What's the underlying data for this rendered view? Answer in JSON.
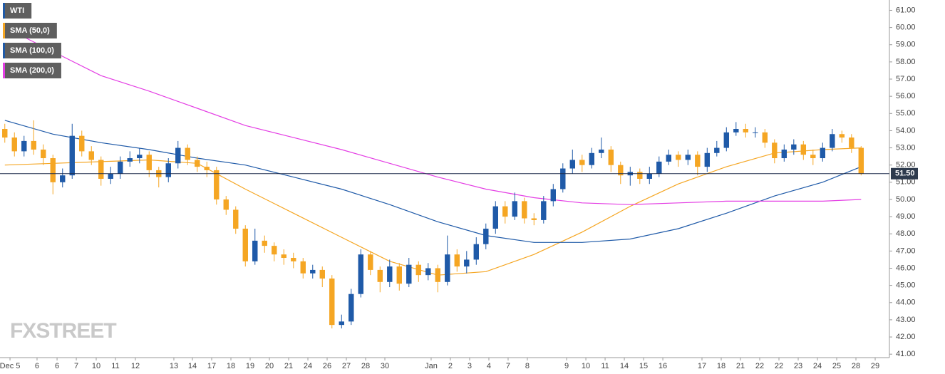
{
  "chart_data": {
    "type": "candlestick",
    "name": "WTI",
    "up_color": "#1f5aa8",
    "down_color": "#f5a623",
    "watermark": "FXSTREET",
    "last_price": {
      "value": 51.5,
      "label": "51.50"
    },
    "x": [
      0,
      1,
      2,
      3,
      4,
      5,
      6,
      7,
      8,
      9,
      10,
      11,
      12,
      13,
      14,
      15,
      16,
      17,
      18,
      19,
      20,
      21,
      22,
      23,
      24,
      25,
      26,
      27,
      28,
      29,
      30,
      31,
      32,
      33,
      34,
      35,
      36,
      37,
      38,
      39,
      40,
      41,
      42,
      43,
      44,
      45,
      46,
      47,
      48,
      49,
      50,
      51,
      52,
      53,
      54,
      55,
      56,
      57,
      58,
      59,
      60,
      61,
      62,
      63,
      64,
      65,
      66,
      67,
      68,
      69,
      70,
      71,
      72,
      73,
      74,
      75,
      76,
      77,
      78,
      79,
      80,
      81,
      82,
      83,
      84,
      85,
      86,
      87,
      88,
      89
    ],
    "open": [
      54.1,
      53.6,
      52.8,
      53.4,
      52.9,
      52.4,
      51.0,
      51.4,
      53.7,
      52.8,
      52.3,
      51.2,
      51.5,
      52.2,
      52.4,
      52.6,
      51.7,
      51.3,
      52.1,
      53.0,
      52.3,
      51.9,
      51.7,
      50.0,
      49.4,
      48.3,
      46.4,
      47.6,
      47.3,
      46.8,
      46.6,
      46.4,
      45.7,
      45.9,
      45.4,
      42.7,
      42.9,
      44.5,
      46.8,
      45.9,
      45.2,
      46.1,
      45.1,
      46.2,
      45.6,
      46.0,
      45.2,
      46.8,
      46.1,
      46.5,
      47.4,
      48.3,
      49.6,
      49.0,
      49.9,
      48.9,
      48.8,
      49.9,
      50.6,
      51.8,
      52.3,
      52.0,
      52.7,
      52.9,
      52.0,
      51.4,
      51.6,
      51.2,
      51.5,
      52.2,
      52.6,
      52.3,
      52.6,
      51.9,
      52.7,
      53.0,
      53.9,
      54.1,
      53.9,
      53.9,
      53.3,
      52.4,
      52.9,
      53.2,
      52.6,
      52.4,
      53.0,
      53.8,
      53.6,
      53.0
    ],
    "high": [
      54.4,
      53.9,
      53.7,
      54.6,
      53.2,
      52.6,
      51.8,
      54.4,
      54.0,
      53.1,
      52.5,
      51.9,
      52.5,
      52.8,
      53.0,
      52.8,
      51.9,
      52.4,
      53.4,
      53.2,
      52.5,
      52.2,
      51.9,
      50.2,
      49.6,
      48.5,
      48.3,
      47.9,
      47.5,
      47.1,
      46.9,
      46.6,
      46.2,
      46.1,
      45.6,
      43.3,
      44.8,
      47.1,
      47.0,
      46.1,
      46.5,
      46.3,
      46.6,
      46.4,
      46.3,
      46.2,
      47.9,
      47.1,
      47.0,
      47.8,
      48.6,
      49.9,
      49.9,
      50.4,
      50.1,
      49.2,
      50.2,
      50.9,
      52.1,
      52.9,
      52.6,
      53.0,
      53.6,
      53.1,
      52.2,
      51.9,
      51.8,
      51.9,
      52.5,
      52.9,
      52.8,
      52.9,
      52.8,
      53.0,
      53.4,
      54.2,
      54.5,
      54.4,
      54.2,
      54.1,
      53.5,
      53.2,
      53.5,
      53.4,
      52.9,
      53.3,
      54.1,
      54.0,
      53.8,
      53.1
    ],
    "low": [
      53.3,
      52.5,
      52.5,
      52.6,
      52.0,
      50.3,
      50.7,
      51.2,
      52.5,
      52.0,
      50.8,
      50.9,
      51.2,
      51.9,
      52.1,
      51.3,
      50.7,
      51.0,
      51.8,
      52.0,
      51.6,
      51.3,
      49.7,
      49.1,
      48.0,
      46.1,
      46.2,
      46.9,
      46.4,
      46.2,
      46.0,
      45.4,
      45.4,
      44.9,
      42.5,
      42.5,
      42.7,
      44.3,
      45.6,
      44.6,
      44.9,
      44.7,
      44.9,
      45.2,
      45.3,
      44.6,
      45.0,
      45.8,
      45.7,
      46.2,
      47.1,
      48.0,
      48.6,
      48.8,
      48.6,
      48.5,
      48.6,
      49.6,
      50.4,
      51.5,
      51.6,
      51.8,
      52.4,
      51.6,
      50.9,
      50.8,
      50.9,
      50.9,
      51.3,
      52.0,
      51.9,
      52.0,
      51.4,
      51.6,
      52.5,
      52.8,
      53.7,
      53.6,
      53.6,
      53.0,
      52.1,
      52.2,
      52.6,
      52.3,
      52.0,
      52.2,
      52.8,
      53.3,
      52.7,
      51.4
    ],
    "close": [
      53.6,
      52.8,
      53.4,
      52.9,
      52.4,
      51.0,
      51.4,
      53.7,
      52.8,
      52.3,
      51.2,
      51.5,
      52.2,
      52.4,
      52.6,
      51.7,
      51.3,
      52.1,
      53.0,
      52.3,
      51.9,
      51.7,
      50.0,
      49.4,
      48.3,
      46.4,
      47.6,
      47.3,
      46.8,
      46.6,
      46.4,
      45.7,
      45.9,
      45.4,
      42.7,
      42.9,
      44.5,
      46.8,
      45.9,
      45.2,
      46.1,
      45.1,
      46.2,
      45.6,
      46.0,
      45.2,
      46.8,
      46.1,
      46.5,
      47.4,
      48.3,
      49.6,
      49.0,
      49.9,
      48.9,
      48.8,
      49.9,
      50.6,
      51.8,
      52.3,
      52.0,
      52.7,
      52.9,
      52.0,
      51.4,
      51.6,
      51.2,
      51.5,
      52.2,
      52.6,
      52.3,
      52.6,
      51.9,
      52.7,
      53.0,
      53.9,
      54.1,
      53.9,
      53.9,
      53.3,
      52.4,
      52.9,
      53.2,
      52.6,
      52.4,
      53.0,
      53.8,
      53.6,
      53.0,
      51.5
    ],
    "series": [
      {
        "name": "SMA (50,0)",
        "color": "#f5a623",
        "x": [
          0,
          5,
          10,
          15,
          20,
          25,
          30,
          35,
          40,
          45,
          50,
          55,
          60,
          65,
          70,
          75,
          80,
          85,
          89
        ],
        "values": [
          52.0,
          52.1,
          52.2,
          52.3,
          52.1,
          50.6,
          49.2,
          47.8,
          46.4,
          45.6,
          45.8,
          46.8,
          48.1,
          49.6,
          50.9,
          51.9,
          52.7,
          52.9,
          53.0
        ]
      },
      {
        "name": "SMA (100,0)",
        "color": "#1f5aa8",
        "x": [
          0,
          5,
          10,
          15,
          20,
          25,
          30,
          35,
          40,
          45,
          50,
          55,
          60,
          65,
          70,
          75,
          80,
          85,
          89
        ],
        "values": [
          54.6,
          53.8,
          53.3,
          52.9,
          52.4,
          52.0,
          51.3,
          50.6,
          49.7,
          48.7,
          47.9,
          47.5,
          47.5,
          47.7,
          48.3,
          49.2,
          50.2,
          51.0,
          51.9
        ]
      },
      {
        "name": "SMA (200,0)",
        "color": "#e43ee4",
        "x": [
          0,
          5,
          10,
          15,
          20,
          25,
          30,
          35,
          40,
          45,
          50,
          55,
          60,
          65,
          70,
          75,
          80,
          85,
          89
        ],
        "values": [
          60.0,
          58.6,
          57.2,
          56.3,
          55.3,
          54.3,
          53.6,
          52.9,
          52.1,
          51.3,
          50.6,
          50.1,
          49.8,
          49.7,
          49.8,
          49.9,
          49.9,
          49.9,
          50.0
        ]
      }
    ],
    "xlim": [
      -0.5,
      91.94
    ],
    "xticks": [
      {
        "value": 0.54,
        "label": "Dec 5"
      },
      {
        "value": 3.35,
        "label": "6"
      },
      {
        "value": 5.43,
        "label": "6"
      },
      {
        "value": 7.43,
        "label": "7"
      },
      {
        "value": 9.5,
        "label": "10"
      },
      {
        "value": 11.5,
        "label": "11"
      },
      {
        "value": 13.57,
        "label": "12"
      },
      {
        "value": 17.57,
        "label": "13"
      },
      {
        "value": 19.5,
        "label": "14"
      },
      {
        "value": 21.5,
        "label": "17"
      },
      {
        "value": 23.5,
        "label": "18"
      },
      {
        "value": 25.5,
        "label": "19"
      },
      {
        "value": 27.5,
        "label": "20"
      },
      {
        "value": 29.5,
        "label": "21"
      },
      {
        "value": 31.5,
        "label": "24"
      },
      {
        "value": 33.5,
        "label": "26"
      },
      {
        "value": 35.5,
        "label": "27"
      },
      {
        "value": 37.5,
        "label": "28"
      },
      {
        "value": 39.5,
        "label": "30"
      },
      {
        "value": 44.31,
        "label": "Jan"
      },
      {
        "value": 46.31,
        "label": "2"
      },
      {
        "value": 48.31,
        "label": "3"
      },
      {
        "value": 50.31,
        "label": "4"
      },
      {
        "value": 52.31,
        "label": "7"
      },
      {
        "value": 54.31,
        "label": "8"
      },
      {
        "value": 58.39,
        "label": "9"
      },
      {
        "value": 60.39,
        "label": "10"
      },
      {
        "value": 62.39,
        "label": "11"
      },
      {
        "value": 64.39,
        "label": "14"
      },
      {
        "value": 66.39,
        "label": "15"
      },
      {
        "value": 68.39,
        "label": "16"
      },
      {
        "value": 72.46,
        "label": "17"
      },
      {
        "value": 74.46,
        "label": "18"
      },
      {
        "value": 76.46,
        "label": "21"
      },
      {
        "value": 78.46,
        "label": "22"
      },
      {
        "value": 80.46,
        "label": "22"
      },
      {
        "value": 82.46,
        "label": "23"
      },
      {
        "value": 84.46,
        "label": "24"
      },
      {
        "value": 86.46,
        "label": "25"
      },
      {
        "value": 88.46,
        "label": "28"
      },
      {
        "value": 90.46,
        "label": "29"
      }
    ],
    "ylim": [
      40.8,
      61.6
    ],
    "yticks": [
      {
        "value": 41,
        "label": "41.00"
      },
      {
        "value": 42,
        "label": "42.00"
      },
      {
        "value": 43,
        "label": "43.00"
      },
      {
        "value": 44,
        "label": "44.00"
      },
      {
        "value": 45,
        "label": "45.00"
      },
      {
        "value": 46,
        "label": "46.00"
      },
      {
        "value": 47,
        "label": "47.00"
      },
      {
        "value": 48,
        "label": "48.00"
      },
      {
        "value": 49,
        "label": "49.00"
      },
      {
        "value": 50,
        "label": "50.00"
      },
      {
        "value": 51,
        "label": "51.00"
      },
      {
        "value": 52,
        "label": "52.00"
      },
      {
        "value": 53,
        "label": "53.00"
      },
      {
        "value": 54,
        "label": "54.00"
      },
      {
        "value": 55,
        "label": "55.00"
      },
      {
        "value": 56,
        "label": "56.00"
      },
      {
        "value": 57,
        "label": "57.00"
      },
      {
        "value": 58,
        "label": "58.00"
      },
      {
        "value": 59,
        "label": "59.00"
      },
      {
        "value": 60,
        "label": "60.00"
      },
      {
        "value": 61,
        "label": "61.00"
      }
    ],
    "grid": false
  }
}
